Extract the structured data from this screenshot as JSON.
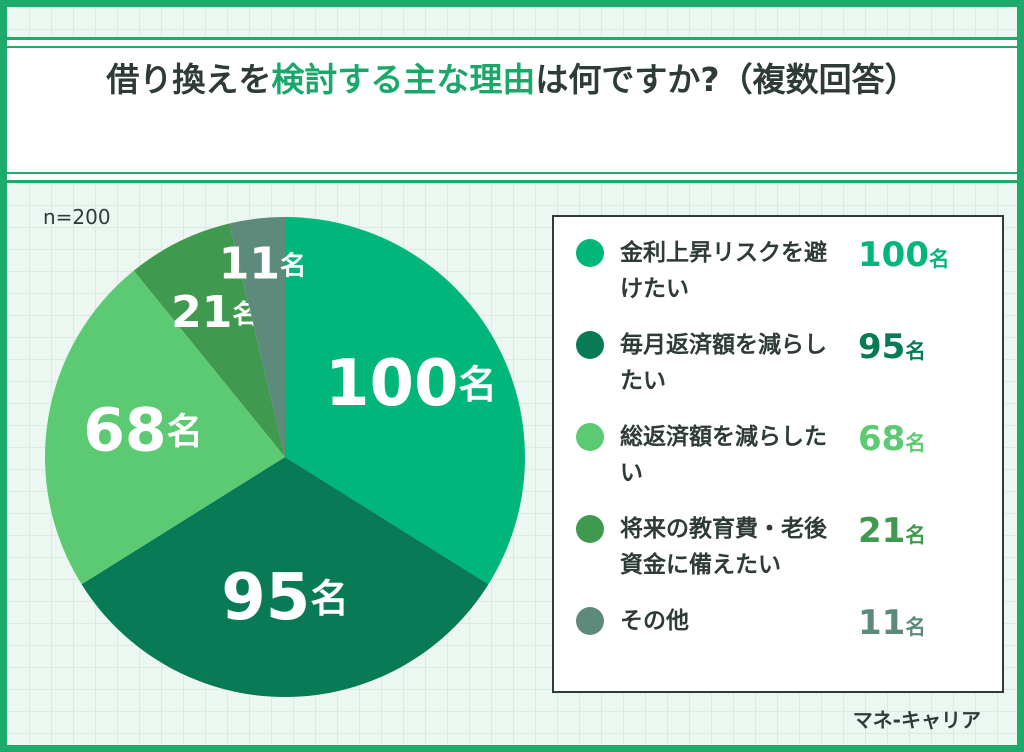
{
  "chart_data": {
    "type": "pie",
    "title": [
      "借り換えを",
      "検討する主な理由",
      "は何ですか?（複数回答）"
    ],
    "title_highlight": 1,
    "title_highlight_color": "#1aa86a",
    "note": "n=200",
    "categories": [
      "金利上昇リスクを避けたい",
      "毎月返済額を減らしたい",
      "総返済額を減らしたい",
      "将来の教育費・老後資金に備えたい",
      "その他"
    ],
    "values": [
      100,
      95,
      68,
      21,
      11
    ],
    "value_labels": [
      "100名",
      "95名",
      "68名",
      "21名",
      "11名"
    ],
    "colors": [
      "#00b67a",
      "#087a55",
      "#5cca72",
      "#3f9a4f",
      "#5e8a7c"
    ]
  },
  "brand": "マネ-キャリア"
}
